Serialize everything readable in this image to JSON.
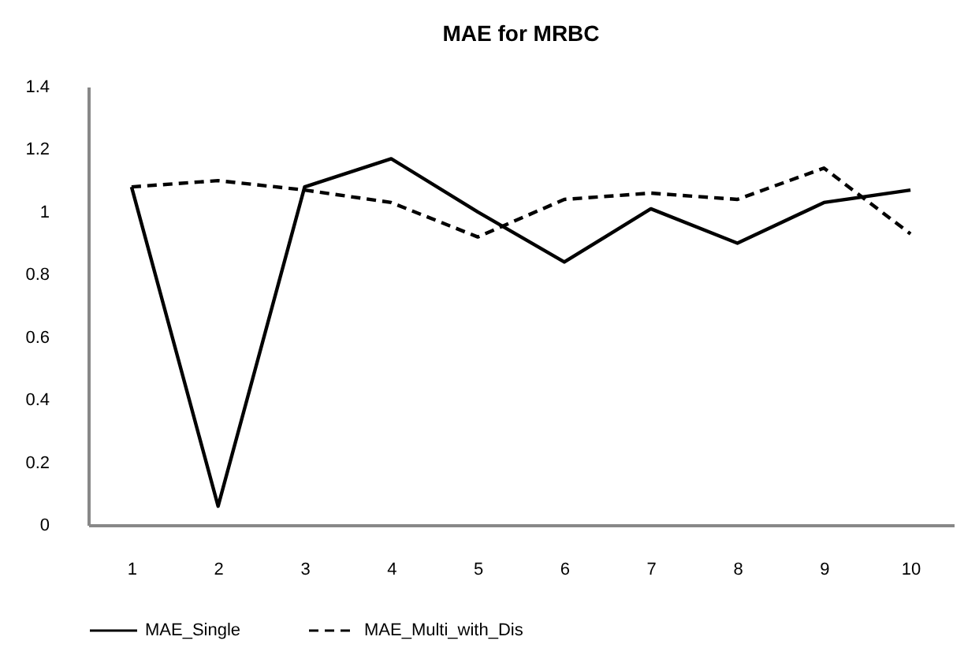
{
  "chart_data": {
    "type": "line",
    "title": "MAE for MRBC",
    "categories": [
      "1",
      "2",
      "3",
      "4",
      "5",
      "6",
      "7",
      "8",
      "9",
      "10"
    ],
    "series": [
      {
        "name": "MAE_Single",
        "color": "#000000",
        "line_style": "solid",
        "values": [
          1.08,
          0.06,
          1.08,
          1.17,
          1.0,
          0.84,
          1.01,
          0.9,
          1.03,
          1.07
        ]
      },
      {
        "name": "MAE_Multi_with_Dis",
        "color": "#000000",
        "line_style": "dashed",
        "values": [
          1.08,
          1.1,
          1.07,
          1.03,
          0.92,
          1.04,
          1.06,
          1.04,
          1.14,
          0.93
        ]
      }
    ],
    "ylim": [
      0,
      1.4
    ],
    "yticks": [
      {
        "value": 0,
        "label": "0"
      },
      0.2,
      0.4,
      0.6,
      0.8,
      {
        "value": 1,
        "label": "1"
      },
      1.2,
      1.4
    ],
    "grid": false,
    "legend": "bottom",
    "marker": "none"
  }
}
